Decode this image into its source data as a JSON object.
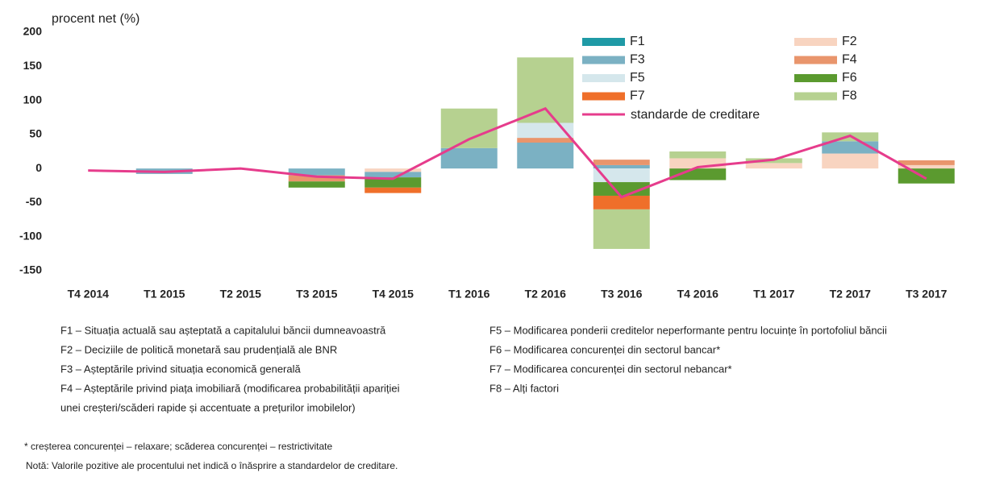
{
  "chart_data": {
    "type": "bar",
    "ylabel": "procent net (%)",
    "categories": [
      "T4 2014",
      "T1 2015",
      "T2 2015",
      "T3 2015",
      "T4 2015",
      "T1 2016",
      "T2 2016",
      "T3 2016",
      "T4 2016",
      "T1 2017",
      "T2 2017",
      "T3 2017"
    ],
    "series": [
      {
        "name": "F1",
        "color": "#1f9aa6",
        "values": [
          0,
          0,
          0,
          0,
          0,
          0,
          0,
          0,
          0,
          0,
          0,
          0
        ]
      },
      {
        "name": "F2",
        "color": "#f8d4c0",
        "values": [
          0,
          0,
          0,
          0,
          -5,
          0,
          0,
          0,
          15,
          8,
          22,
          5
        ]
      },
      {
        "name": "F3",
        "color": "#7bb1c3",
        "values": [
          0,
          -8,
          0,
          -10,
          -8,
          30,
          38,
          5,
          0,
          0,
          18,
          0
        ]
      },
      {
        "name": "F4",
        "color": "#e9956c",
        "values": [
          0,
          0,
          0,
          -9,
          0,
          0,
          7,
          8,
          0,
          0,
          0,
          7
        ]
      },
      {
        "name": "F5",
        "color": "#d5e7ec",
        "values": [
          0,
          0,
          0,
          0,
          0,
          0,
          22,
          -20,
          0,
          0,
          0,
          0
        ]
      },
      {
        "name": "F6",
        "color": "#5b9a2f",
        "values": [
          0,
          0,
          0,
          -9,
          -15,
          0,
          0,
          -20,
          -17,
          0,
          0,
          -22
        ]
      },
      {
        "name": "F7",
        "color": "#ef6f2a",
        "values": [
          0,
          0,
          0,
          0,
          -8,
          0,
          0,
          -20,
          0,
          0,
          0,
          0
        ]
      },
      {
        "name": "F8",
        "color": "#b6d190",
        "values": [
          0,
          0,
          0,
          0,
          0,
          58,
          96,
          -58,
          10,
          7,
          13,
          0
        ]
      }
    ],
    "line": {
      "name": "standarde de creditare",
      "color": "#e63c8c",
      "values": [
        -3,
        -5,
        0,
        -12,
        -15,
        43,
        88,
        -42,
        2,
        13,
        48,
        -15
      ]
    },
    "ylim": [
      -150,
      200
    ],
    "yticks": [
      -150,
      -100,
      -50,
      0,
      50,
      100,
      150,
      200
    ],
    "notes_left": [
      "F1 – Situația actuală sau așteptată a capitalului băncii dumneavoastră",
      "F2 – Deciziile de politică monetară sau prudențială ale BNR",
      "F3 – Așteptările privind situația economică generală",
      "F4 – Așteptările privind piața imobiliară (modificarea probabilității apariției",
      "unei creșteri/scăderi rapide și accentuate a prețurilor imobilelor)"
    ],
    "notes_right": [
      "F5 – Modificarea ponderii creditelor neperformante pentru locuințe în portofoliul băncii",
      "F6 – Modificarea concurenței din sectorul bancar*",
      "F7 – Modificarea concurenței din sectorul nebancar*",
      "F8 – Alți factori"
    ],
    "footnote": "* creșterea concurenței – relaxare; scăderea concurenței – restrictivitate",
    "note": "Notă: Valorile pozitive ale procentului net indică o înăsprire a standardelor de creditare."
  }
}
